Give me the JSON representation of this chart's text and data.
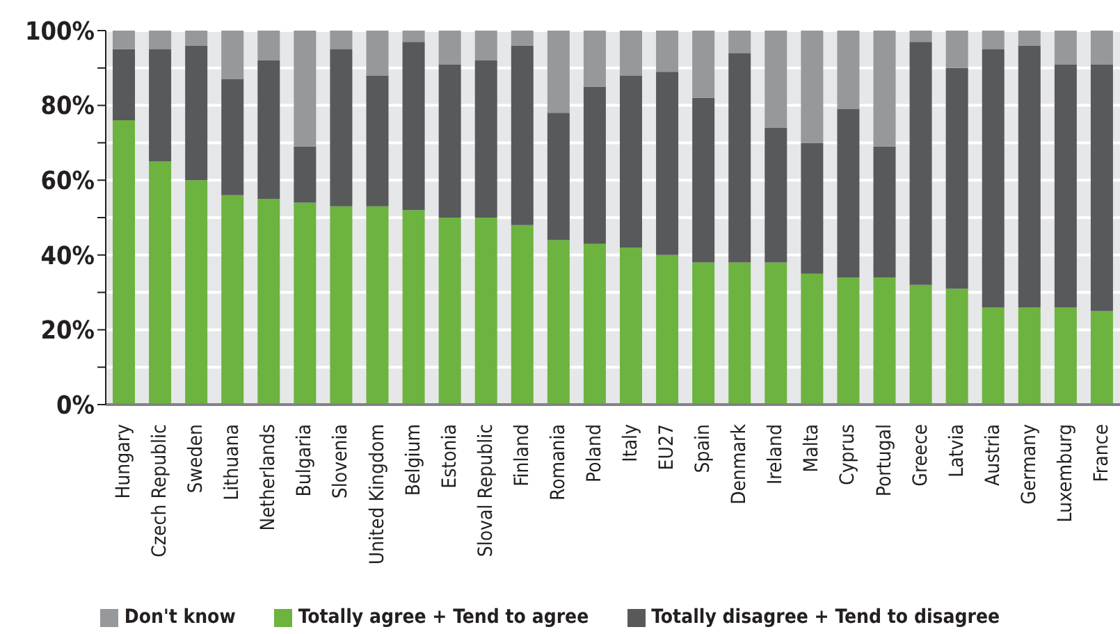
{
  "chart_data": {
    "type": "bar",
    "stacked": true,
    "categories": [
      "Hungary",
      "Czech Republic",
      "Sweden",
      "Lithuana",
      "Netherlands",
      "Bulgaria",
      "Slovenia",
      "United Kingdom",
      "Belgium",
      "Estonia",
      "Sloval Republic",
      "Finland",
      "Romania",
      "Poland",
      "Italy",
      "EU27",
      "Spain",
      "Denmark",
      "Ireland",
      "Malta",
      "Cyprus",
      "Portugal",
      "Greece",
      "Latvia",
      "Austria",
      "Germany",
      "Luxemburg",
      "France"
    ],
    "series": [
      {
        "name": "Totally agree + Tend to agree",
        "color": "#6db33f",
        "values": [
          76,
          65,
          60,
          56,
          55,
          54,
          53,
          53,
          52,
          50,
          50,
          48,
          44,
          43,
          42,
          40,
          38,
          38,
          38,
          35,
          34,
          34,
          32,
          31,
          26,
          26,
          26,
          25
        ]
      },
      {
        "name": "Totally disagree + Tend to disagree",
        "color": "#58595b",
        "values": [
          19,
          30,
          36,
          31,
          37,
          15,
          42,
          35,
          45,
          41,
          42,
          48,
          34,
          42,
          46,
          49,
          44,
          56,
          36,
          35,
          45,
          35,
          65,
          59,
          69,
          70,
          65,
          66
        ]
      },
      {
        "name": "Don't know",
        "color": "#97989b",
        "values": [
          5,
          5,
          4,
          13,
          8,
          31,
          5,
          12,
          3,
          9,
          8,
          4,
          22,
          15,
          12,
          11,
          18,
          6,
          26,
          30,
          21,
          31,
          3,
          10,
          5,
          4,
          9,
          9
        ]
      }
    ],
    "ylim": [
      0,
      100
    ],
    "yticks": [
      {
        "value": 0,
        "label": "0%"
      },
      {
        "value": 10,
        "label": null
      },
      {
        "value": 20,
        "label": "20%"
      },
      {
        "value": 30,
        "label": null
      },
      {
        "value": 40,
        "label": "40%"
      },
      {
        "value": 50,
        "label": null
      },
      {
        "value": 60,
        "label": "60%"
      },
      {
        "value": 70,
        "label": null
      },
      {
        "value": 80,
        "label": "80%"
      },
      {
        "value": 90,
        "label": null
      },
      {
        "value": 100,
        "label": "100%"
      }
    ],
    "grid": "y",
    "legend": "bottom"
  }
}
